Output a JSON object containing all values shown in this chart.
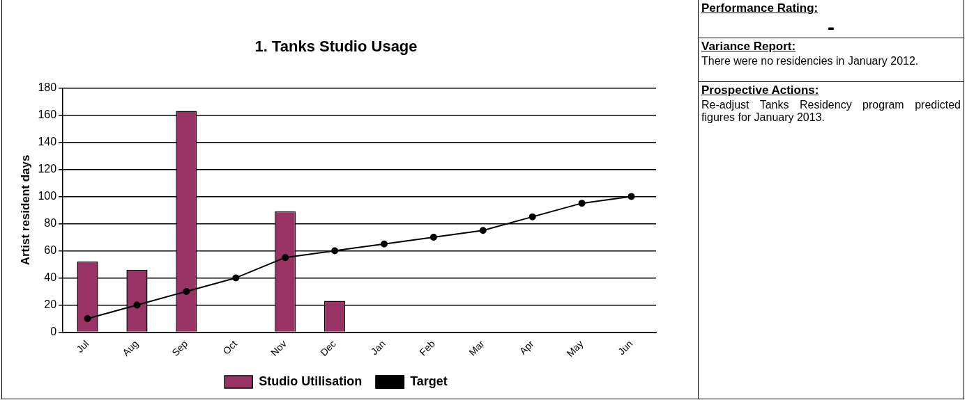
{
  "chart_data": {
    "type": "bar",
    "title": "1. Tanks Studio Usage",
    "ylabel": "Artist resident days",
    "categories": [
      "Jul",
      "Aug",
      "Sep",
      "Oct",
      "Nov",
      "Dec",
      "Jan",
      "Feb",
      "Mar",
      "Apr",
      "May",
      "Jun"
    ],
    "series": [
      {
        "name": "Studio Utilisation",
        "color": "#993366",
        "values": [
          52,
          46,
          163,
          null,
          89,
          23,
          null,
          null,
          null,
          null,
          null,
          null
        ]
      },
      {
        "name": "Target",
        "type": "line",
        "color": "#000000",
        "values": [
          10,
          20,
          30,
          40,
          55,
          60,
          65,
          70,
          75,
          85,
          95,
          100
        ]
      }
    ],
    "ylim": [
      0,
      180
    ],
    "yticks": [
      0,
      20,
      40,
      60,
      80,
      100,
      120,
      140,
      160,
      180
    ],
    "grid": "y",
    "legend": "bottom",
    "marker": "circle",
    "line_style": "solid",
    "annotations": [
      "Performance Rating:",
      "-",
      "Variance Report:",
      "There were no residencies in January 2012.",
      "Prospective Actions:",
      "Re-adjust Tanks Residency program predicted figures for January 2013."
    ]
  }
}
